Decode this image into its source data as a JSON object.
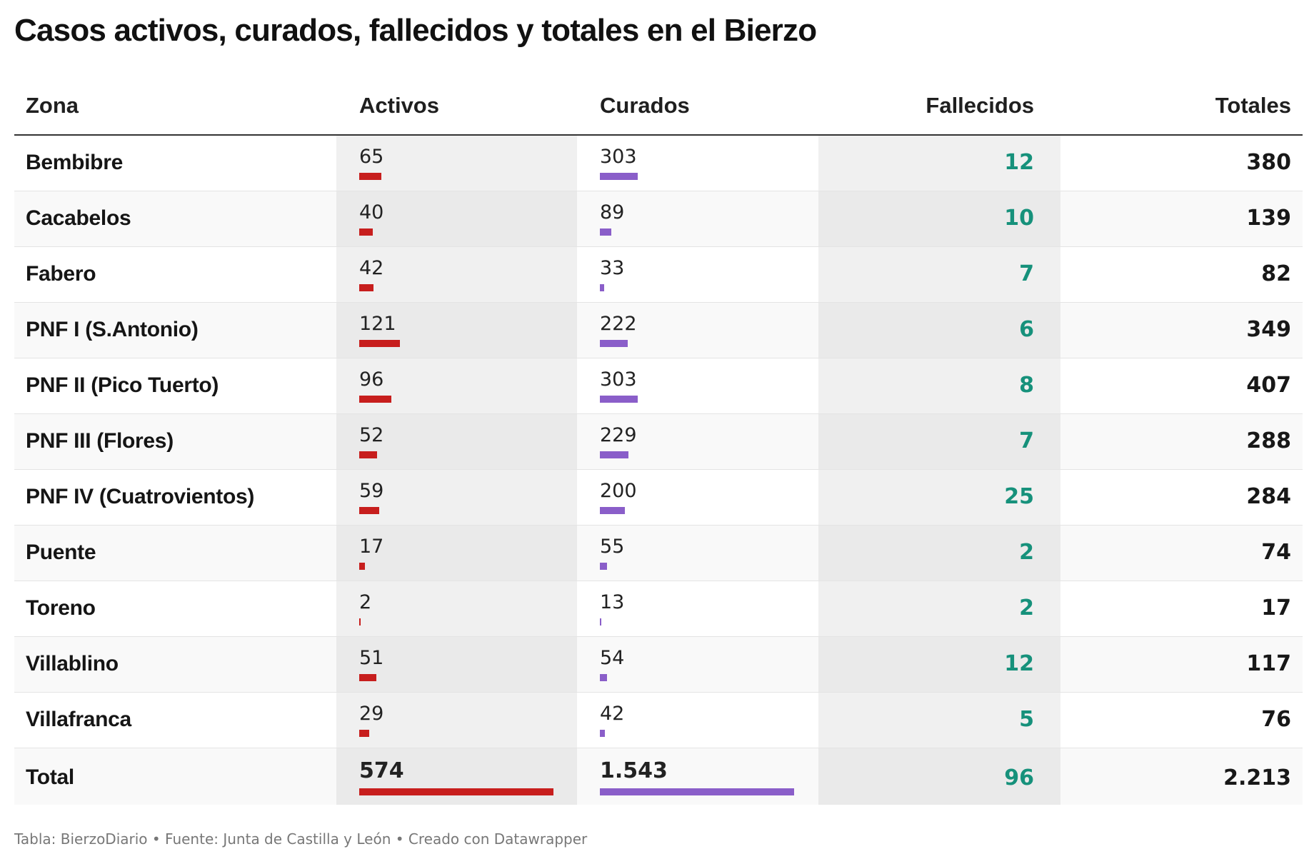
{
  "title": "Casos activos, curados, fallecidos y totales en el Bierzo",
  "footer": "Tabla: BierzoDiario • Fuente: Junta de Castilla y León • Creado con Datawrapper",
  "colors": {
    "activos_bar": "#c71e1d",
    "curados_bar": "#8a5ec9",
    "fallecidos_text": "#16917b"
  },
  "chart_data": {
    "type": "table",
    "title": "Casos activos, curados, fallecidos y totales en el Bierzo",
    "columns": [
      "Zona",
      "Activos",
      "Curados",
      "Fallecidos",
      "Totales"
    ],
    "rows": [
      {
        "zona": "Bembibre",
        "activos": 65,
        "activos_label": "65",
        "curados": 303,
        "curados_label": "303",
        "fallecidos": "12",
        "totales": "380"
      },
      {
        "zona": "Cacabelos",
        "activos": 40,
        "activos_label": "40",
        "curados": 89,
        "curados_label": "89",
        "fallecidos": "10",
        "totales": "139"
      },
      {
        "zona": "Fabero",
        "activos": 42,
        "activos_label": "42",
        "curados": 33,
        "curados_label": "33",
        "fallecidos": "7",
        "totales": "82"
      },
      {
        "zona": "PNF I (S.Antonio)",
        "activos": 121,
        "activos_label": "121",
        "curados": 222,
        "curados_label": "222",
        "fallecidos": "6",
        "totales": "349"
      },
      {
        "zona": "PNF II (Pico Tuerto)",
        "activos": 96,
        "activos_label": "96",
        "curados": 303,
        "curados_label": "303",
        "fallecidos": "8",
        "totales": "407"
      },
      {
        "zona": "PNF III (Flores)",
        "activos": 52,
        "activos_label": "52",
        "curados": 229,
        "curados_label": "229",
        "fallecidos": "7",
        "totales": "288"
      },
      {
        "zona": "PNF IV (Cuatrovientos)",
        "activos": 59,
        "activos_label": "59",
        "curados": 200,
        "curados_label": "200",
        "fallecidos": "25",
        "totales": "284"
      },
      {
        "zona": "Puente",
        "activos": 17,
        "activos_label": "17",
        "curados": 55,
        "curados_label": "55",
        "fallecidos": "2",
        "totales": "74"
      },
      {
        "zona": "Toreno",
        "activos": 2,
        "activos_label": "2",
        "curados": 13,
        "curados_label": "13",
        "fallecidos": "2",
        "totales": "17"
      },
      {
        "zona": "Villablino",
        "activos": 51,
        "activos_label": "51",
        "curados": 54,
        "curados_label": "54",
        "fallecidos": "12",
        "totales": "117"
      },
      {
        "zona": "Villafranca",
        "activos": 29,
        "activos_label": "29",
        "curados": 42,
        "curados_label": "42",
        "fallecidos": "5",
        "totales": "76"
      },
      {
        "zona": "Total",
        "activos": 574,
        "activos_label": "574",
        "curados": 1543,
        "curados_label": "1.543",
        "fallecidos": "96",
        "totales": "2.213",
        "is_total": true
      }
    ]
  }
}
